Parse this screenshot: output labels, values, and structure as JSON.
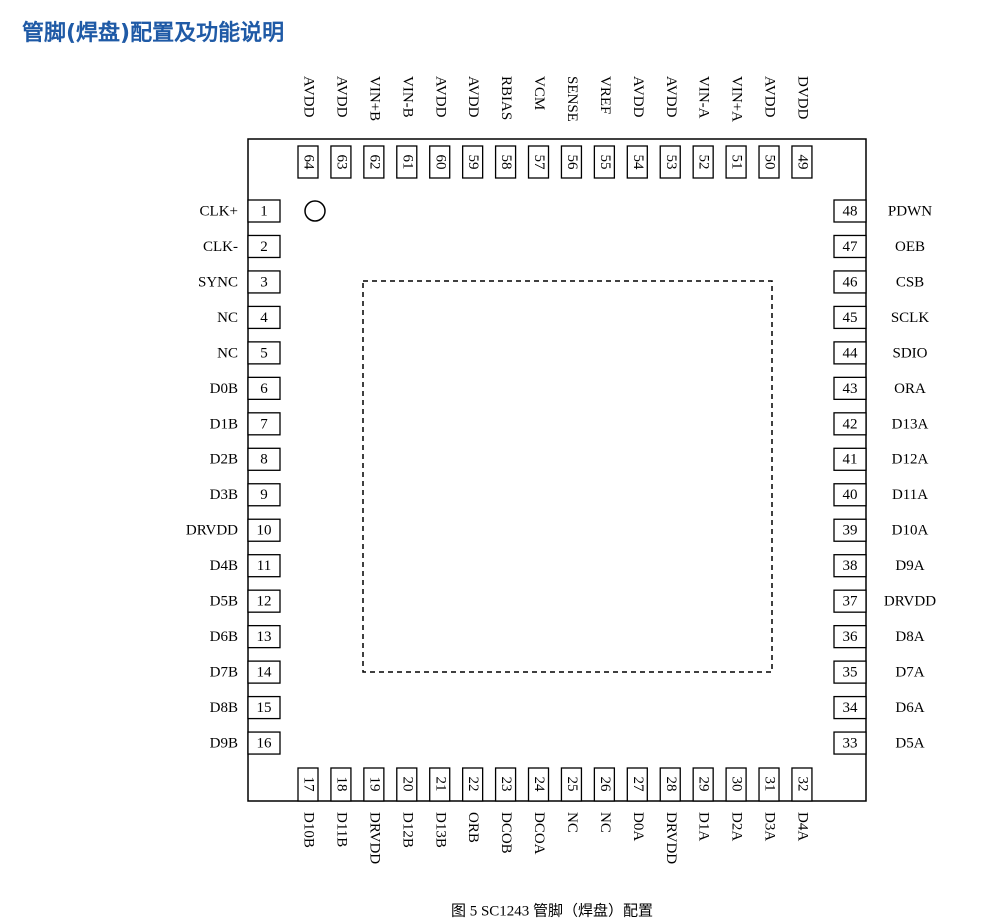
{
  "title": "管脚(焊盘)配置及功能说明",
  "caption": "图 5 SC1243 管脚（焊盘）配置",
  "pins": {
    "left": [
      {
        "number": 1,
        "name": "CLK+"
      },
      {
        "number": 2,
        "name": "CLK-"
      },
      {
        "number": 3,
        "name": "SYNC"
      },
      {
        "number": 4,
        "name": "NC"
      },
      {
        "number": 5,
        "name": "NC"
      },
      {
        "number": 6,
        "name": "D0B"
      },
      {
        "number": 7,
        "name": "D1B"
      },
      {
        "number": 8,
        "name": "D2B"
      },
      {
        "number": 9,
        "name": "D3B"
      },
      {
        "number": 10,
        "name": "DRVDD"
      },
      {
        "number": 11,
        "name": "D4B"
      },
      {
        "number": 12,
        "name": "D5B"
      },
      {
        "number": 13,
        "name": "D6B"
      },
      {
        "number": 14,
        "name": "D7B"
      },
      {
        "number": 15,
        "name": "D8B"
      },
      {
        "number": 16,
        "name": "D9B"
      }
    ],
    "right": [
      {
        "number": 48,
        "name": "PDWN"
      },
      {
        "number": 47,
        "name": "OEB"
      },
      {
        "number": 46,
        "name": "CSB"
      },
      {
        "number": 45,
        "name": "SCLK"
      },
      {
        "number": 44,
        "name": "SDIO"
      },
      {
        "number": 43,
        "name": "ORA"
      },
      {
        "number": 42,
        "name": "D13A"
      },
      {
        "number": 41,
        "name": "D12A"
      },
      {
        "number": 40,
        "name": "D11A"
      },
      {
        "number": 39,
        "name": "D10A"
      },
      {
        "number": 38,
        "name": "D9A"
      },
      {
        "number": 37,
        "name": "DRVDD"
      },
      {
        "number": 36,
        "name": "D8A"
      },
      {
        "number": 35,
        "name": "D7A"
      },
      {
        "number": 34,
        "name": "D6A"
      },
      {
        "number": 33,
        "name": "D5A"
      }
    ],
    "top": [
      {
        "number": 64,
        "name": "AVDD"
      },
      {
        "number": 63,
        "name": "AVDD"
      },
      {
        "number": 62,
        "name": "VIN+B"
      },
      {
        "number": 61,
        "name": "VIN-B"
      },
      {
        "number": 60,
        "name": "AVDD"
      },
      {
        "number": 59,
        "name": "AVDD"
      },
      {
        "number": 58,
        "name": "RBIAS"
      },
      {
        "number": 57,
        "name": "VCM"
      },
      {
        "number": 56,
        "name": "SENSE"
      },
      {
        "number": 55,
        "name": "VREF"
      },
      {
        "number": 54,
        "name": "AVDD"
      },
      {
        "number": 53,
        "name": "AVDD"
      },
      {
        "number": 52,
        "name": "VIN-A"
      },
      {
        "number": 51,
        "name": "VIN+A"
      },
      {
        "number": 50,
        "name": "AVDD"
      },
      {
        "number": 49,
        "name": "DVDD"
      }
    ],
    "bottom": [
      {
        "number": 17,
        "name": "D10B"
      },
      {
        "number": 18,
        "name": "D11B"
      },
      {
        "number": 19,
        "name": "DRVDD"
      },
      {
        "number": 20,
        "name": "D12B"
      },
      {
        "number": 21,
        "name": "D13B"
      },
      {
        "number": 22,
        "name": "ORB"
      },
      {
        "number": 23,
        "name": "DCOB"
      },
      {
        "number": 24,
        "name": "DCOA"
      },
      {
        "number": 25,
        "name": "NC"
      },
      {
        "number": 26,
        "name": "NC"
      },
      {
        "number": 27,
        "name": "D0A"
      },
      {
        "number": 28,
        "name": "DRVDD"
      },
      {
        "number": 29,
        "name": "D1A"
      },
      {
        "number": 30,
        "name": "D2A"
      },
      {
        "number": 31,
        "name": "D3A"
      },
      {
        "number": 32,
        "name": "D4A"
      }
    ]
  }
}
